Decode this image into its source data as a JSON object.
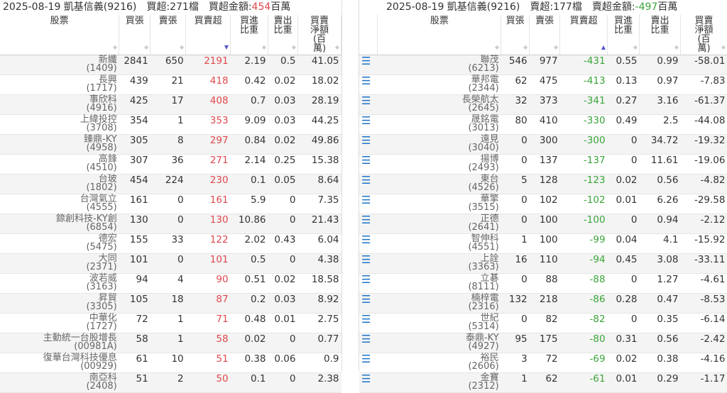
{
  "columns": [
    "股票",
    "買張",
    "賣張",
    "買賣超",
    "買進比重",
    "賣出比重",
    "買賣淨額(百萬)"
  ],
  "left": {
    "date": "2025-08-19 凱基信義(9216)",
    "count_label": "買超:271檔",
    "amount_label": "買超金額:",
    "amount": "454",
    "amount_unit": "百萬",
    "rows": [
      [
        "新纖",
        "(1409)",
        "2841",
        "650",
        "2191",
        "2.19",
        "0.5",
        "41.05"
      ],
      [
        "長興",
        "(1717)",
        "439",
        "21",
        "418",
        "0.42",
        "0.02",
        "18.02"
      ],
      [
        "事欣科",
        "(4916)",
        "425",
        "17",
        "408",
        "0.7",
        "0.03",
        "28.19"
      ],
      [
        "上緯投控",
        "(3708)",
        "354",
        "1",
        "353",
        "9.09",
        "0.03",
        "44.25"
      ],
      [
        "臻鼎-KY",
        "(4958)",
        "305",
        "8",
        "297",
        "0.84",
        "0.02",
        "49.86"
      ],
      [
        "高鋒",
        "(4510)",
        "307",
        "36",
        "271",
        "2.14",
        "0.25",
        "15.38"
      ],
      [
        "台玻",
        "(1802)",
        "454",
        "224",
        "230",
        "0.1",
        "0.05",
        "8.64"
      ],
      [
        "台灣氣立",
        "(4555)",
        "161",
        "0",
        "161",
        "5.9",
        "0",
        "7.35"
      ],
      [
        "錼創科技-KY創",
        "(6854)",
        "130",
        "0",
        "130",
        "10.86",
        "0",
        "21.43"
      ],
      [
        "德宏",
        "(5475)",
        "155",
        "33",
        "122",
        "2.02",
        "0.43",
        "6.04"
      ],
      [
        "大同",
        "(2371)",
        "101",
        "0",
        "101",
        "0.5",
        "0",
        "4.38"
      ],
      [
        "波若威",
        "(3163)",
        "94",
        "4",
        "90",
        "0.51",
        "0.02",
        "18.58"
      ],
      [
        "昇貿",
        "(3305)",
        "105",
        "18",
        "87",
        "0.2",
        "0.03",
        "8.92"
      ],
      [
        "中華化",
        "(1727)",
        "72",
        "1",
        "71",
        "0.48",
        "0.01",
        "2.75"
      ],
      [
        "主動統一台股增長",
        "(00981A)",
        "58",
        "1",
        "58",
        "0.02",
        "0",
        "0.77"
      ],
      [
        "復華台灣科技優息",
        "(00929)",
        "61",
        "10",
        "51",
        "0.38",
        "0.06",
        "0.9"
      ],
      [
        "南亞科",
        "(2408)",
        "51",
        "2",
        "50",
        "0.1",
        "0",
        "2.38"
      ]
    ]
  },
  "right": {
    "date": "2025-08-19 凱基信義(9216)",
    "count_label": "賣超:177檔",
    "amount_label": "賣超金額:",
    "amount": "-497",
    "amount_unit": "百萬",
    "rows": [
      [
        "聯茂",
        "(6213)",
        "546",
        "977",
        "-431",
        "0.55",
        "0.99",
        "-58.01"
      ],
      [
        "華邦電",
        "(2344)",
        "62",
        "475",
        "-413",
        "0.13",
        "0.97",
        "-7.83"
      ],
      [
        "長榮航太",
        "(2645)",
        "32",
        "373",
        "-341",
        "0.27",
        "3.16",
        "-61.37"
      ],
      [
        "晟銘電",
        "(3013)",
        "80",
        "410",
        "-330",
        "0.49",
        "2.5",
        "-44.08"
      ],
      [
        "遠見",
        "(3040)",
        "0",
        "300",
        "-300",
        "0",
        "34.72",
        "-19.32"
      ],
      [
        "揚博",
        "(2493)",
        "0",
        "137",
        "-137",
        "0",
        "11.61",
        "-19.06"
      ],
      [
        "東台",
        "(4526)",
        "5",
        "128",
        "-123",
        "0.02",
        "0.56",
        "-4.82"
      ],
      [
        "華擎",
        "(3515)",
        "0",
        "102",
        "-102",
        "0.01",
        "6.26",
        "-29.58"
      ],
      [
        "正德",
        "(2641)",
        "0",
        "100",
        "-100",
        "0",
        "0.94",
        "-2.12"
      ],
      [
        "智伸科",
        "(4551)",
        "1",
        "100",
        "-99",
        "0.04",
        "4.1",
        "-15.92"
      ],
      [
        "上詮",
        "(3363)",
        "16",
        "110",
        "-94",
        "0.45",
        "3.08",
        "-33.11"
      ],
      [
        "立碁",
        "(8111)",
        "0",
        "88",
        "-88",
        "0",
        "1.27",
        "-4.61"
      ],
      [
        "楠梓電",
        "(2316)",
        "132",
        "218",
        "-86",
        "0.28",
        "0.47",
        "-8.53"
      ],
      [
        "世紀",
        "(5314)",
        "0",
        "82",
        "-82",
        "0",
        "0.35",
        "-6.14"
      ],
      [
        "泰鼎-KY",
        "(4927)",
        "95",
        "175",
        "-80",
        "0.31",
        "0.56",
        "-2.42"
      ],
      [
        "裕民",
        "(2606)",
        "3",
        "72",
        "-69",
        "0.02",
        "0.38",
        "-4.16"
      ],
      [
        "金寶",
        "(2312)",
        "1",
        "62",
        "-61",
        "0.01",
        "0.29",
        "-1.17"
      ]
    ]
  },
  "icons": {
    "row_menu": "list-icon",
    "sort": "sort-icon"
  },
  "colors": {
    "buy": "#e0474c",
    "sell": "#3aa53a",
    "menu_icon": "#1a73c8"
  }
}
